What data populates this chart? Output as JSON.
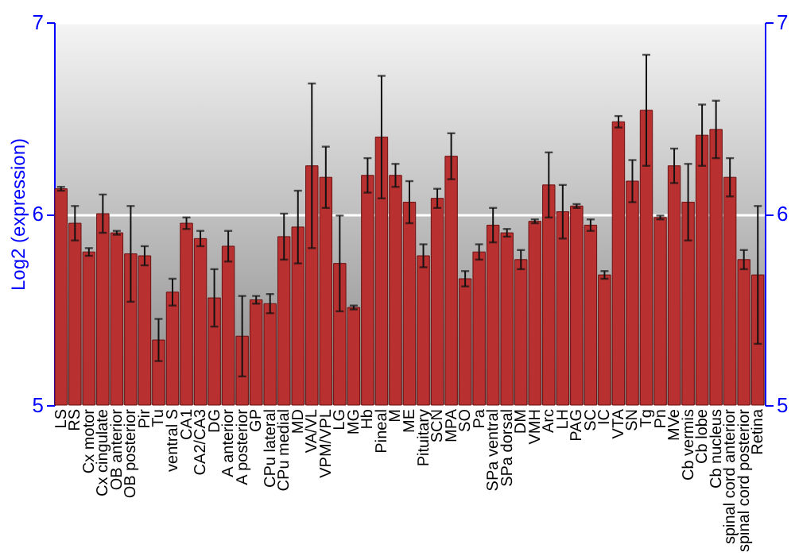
{
  "chart_data": {
    "type": "bar",
    "ylabel": "Log2 (expression)",
    "categories": [
      "LS",
      "RS",
      "Cx motor",
      "Cx cingulate",
      "OB anterior",
      "OB posterior",
      "Pir",
      "Tu",
      "ventral S",
      "CA1",
      "CA2/CA3",
      "DG",
      "A anterior",
      "A posterior",
      "GP",
      "CPu lateral",
      "CPu medial",
      "MD",
      "VA/VL",
      "VPM/VPL",
      "LG",
      "MG",
      "Hb",
      "Pineal",
      "M",
      "ME",
      "Pituitary",
      "SCN",
      "MPA",
      "SO",
      "Pa",
      "SPa ventral",
      "SPa dorsal",
      "DM",
      "VMH",
      "Arc",
      "LH",
      "PAG",
      "SC",
      "IC",
      "VTA",
      "SN",
      "Tg",
      "Pn",
      "MVe",
      "Cb vermis",
      "Cb lobe",
      "Cb nucleus",
      "spinal cord anterior",
      "spinal cord posterior",
      "Retina"
    ],
    "values": [
      6.13,
      5.95,
      5.8,
      6.0,
      5.9,
      5.79,
      5.78,
      5.34,
      5.59,
      5.95,
      5.87,
      5.56,
      5.83,
      5.36,
      5.55,
      5.53,
      5.88,
      5.93,
      6.25,
      6.19,
      5.74,
      5.51,
      6.2,
      6.4,
      6.2,
      6.06,
      5.78,
      6.08,
      6.3,
      5.66,
      5.8,
      5.94,
      5.9,
      5.76,
      5.96,
      6.15,
      6.01,
      6.04,
      5.94,
      5.68,
      6.48,
      6.17,
      6.54,
      5.98,
      6.25,
      6.06,
      6.41,
      6.44,
      6.19,
      5.76,
      5.68
    ],
    "errors": [
      0.01,
      0.09,
      0.02,
      0.1,
      0.01,
      0.25,
      0.05,
      0.11,
      0.07,
      0.03,
      0.04,
      0.15,
      0.08,
      0.21,
      0.02,
      0.05,
      0.12,
      0.19,
      0.43,
      0.16,
      0.25,
      0.01,
      0.09,
      0.32,
      0.06,
      0.11,
      0.06,
      0.05,
      0.12,
      0.04,
      0.04,
      0.09,
      0.02,
      0.05,
      0.01,
      0.17,
      0.14,
      0.01,
      0.03,
      0.02,
      0.03,
      0.11,
      0.29,
      0.01,
      0.09,
      0.2,
      0.16,
      0.15,
      0.1,
      0.05,
      0.36
    ],
    "color": "#b83030",
    "ylim": [
      5,
      7
    ],
    "yticks": [
      5,
      6,
      7
    ],
    "y2lim": [
      5,
      7
    ],
    "y2ticks": [
      5,
      6,
      7
    ],
    "grid": "y"
  }
}
